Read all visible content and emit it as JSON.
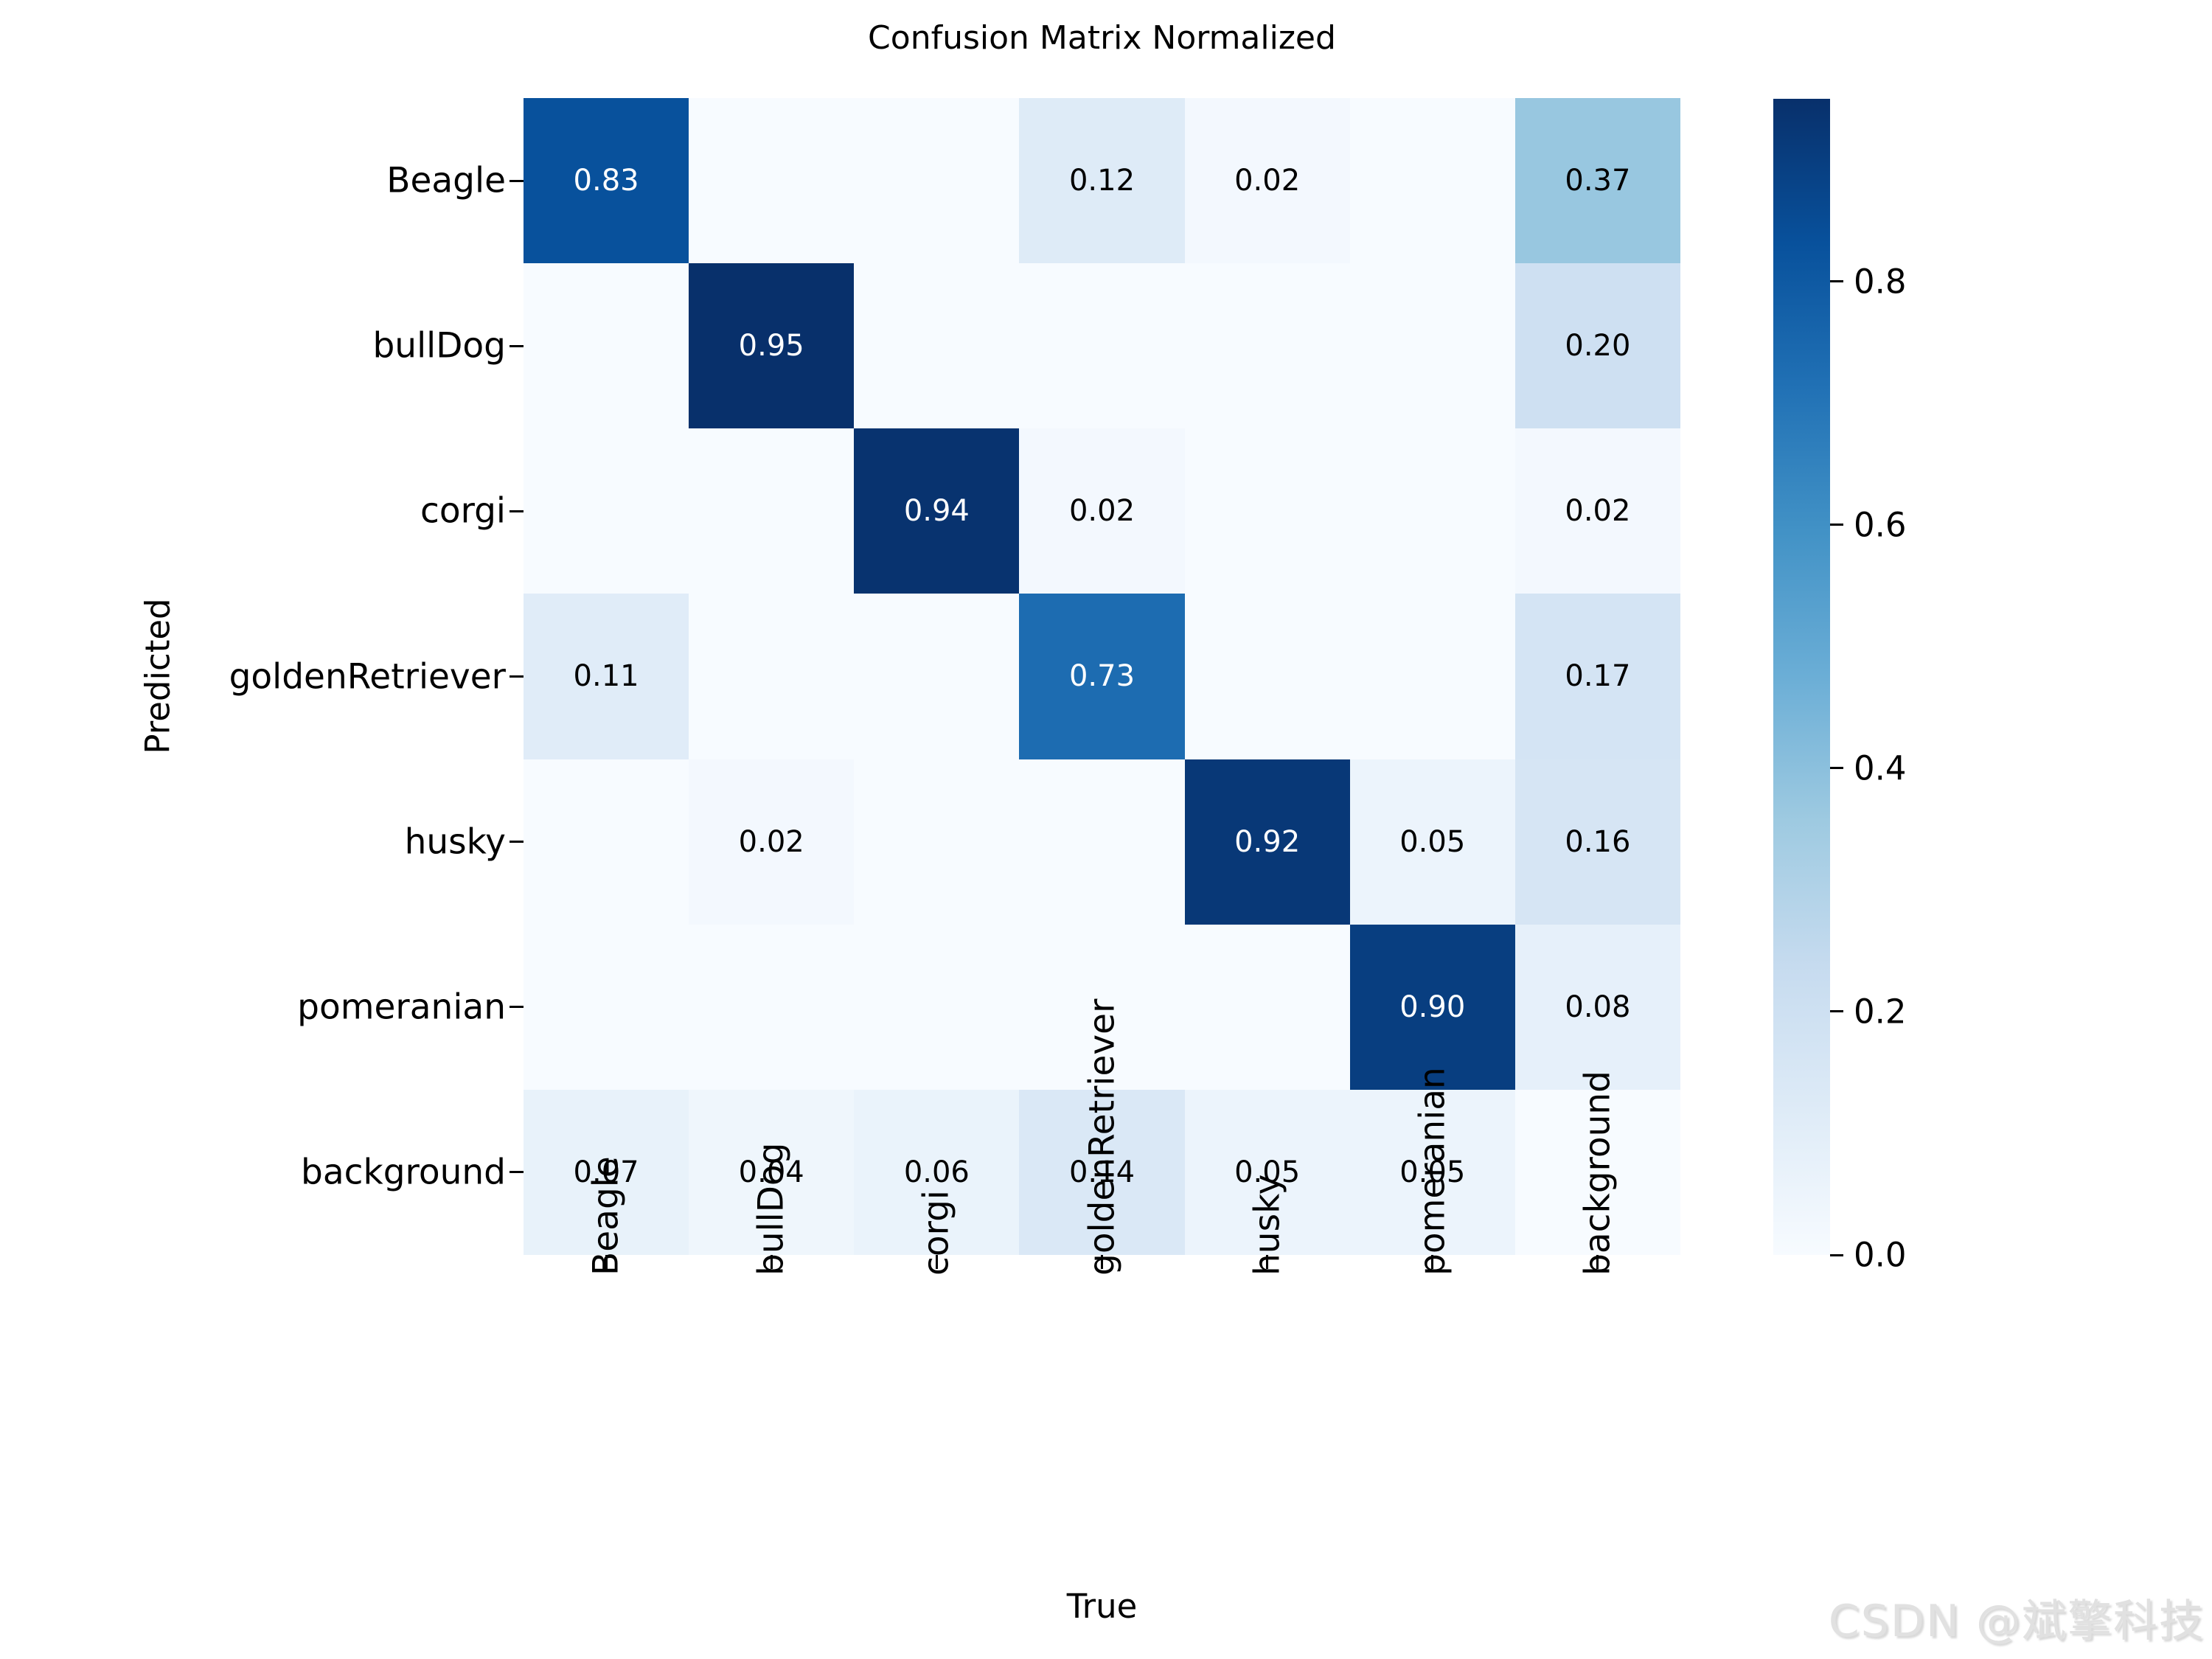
{
  "figure": {
    "title": "Confusion Matrix Normalized",
    "watermark": "CSDN @斌擎科技"
  },
  "chart_data": {
    "type": "heatmap",
    "title": "Confusion Matrix Normalized",
    "xlabel": "True",
    "ylabel": "Predicted",
    "x_categories": [
      "Beagle",
      "bullDog",
      "corgi",
      "goldenRetriever",
      "husky",
      "pomeranian",
      "background"
    ],
    "y_categories": [
      "Beagle",
      "bullDog",
      "corgi",
      "goldenRetriever",
      "husky",
      "pomeranian",
      "background"
    ],
    "matrix": [
      [
        0.83,
        null,
        null,
        0.12,
        0.02,
        null,
        0.37
      ],
      [
        null,
        0.95,
        null,
        null,
        null,
        null,
        0.2
      ],
      [
        null,
        null,
        0.94,
        0.02,
        null,
        null,
        0.02
      ],
      [
        0.11,
        null,
        null,
        0.73,
        null,
        null,
        0.17
      ],
      [
        null,
        0.02,
        null,
        null,
        0.92,
        0.05,
        0.16
      ],
      [
        null,
        null,
        null,
        null,
        null,
        0.9,
        0.08
      ],
      [
        0.07,
        0.04,
        0.06,
        0.14,
        0.05,
        0.05,
        null
      ]
    ],
    "value_format": "0.00",
    "vmin": 0.0,
    "vmax": 0.95,
    "colormap": "Blues",
    "colormap_anchors": [
      "#f7fbff",
      "#deebf7",
      "#c6dbef",
      "#9ecae1",
      "#6baed6",
      "#4292c6",
      "#2171b5",
      "#08519c",
      "#08306b"
    ],
    "annotation_colors": {
      "on_dark": "#ffffff",
      "on_light": "#000000"
    },
    "grid": false,
    "legend": "colorbar-right",
    "colorbar_ticks": [
      0.8,
      0.6,
      0.4,
      0.2,
      0.0
    ],
    "colorbar_tick_labels": [
      "0.8",
      "0.6",
      "0.4",
      "0.2",
      "0.0"
    ]
  }
}
